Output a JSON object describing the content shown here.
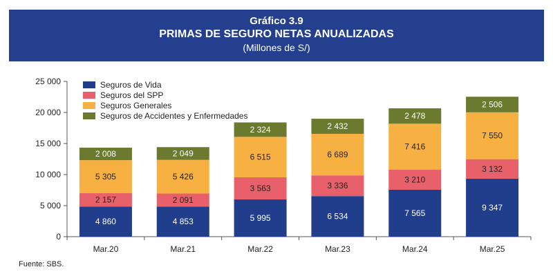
{
  "header": {
    "line1": "Gráfico 3.9",
    "line2": "PRIMAS DE SEGURO NETAS ANUALIZADAS",
    "line3": "(Millones de S/)"
  },
  "source": "Fuente: SBS.",
  "chart_data": {
    "type": "bar",
    "stacked": true,
    "categories": [
      "Mar.20",
      "Mar.21",
      "Mar.22",
      "Mar.23",
      "Mar.24",
      "Mar.25"
    ],
    "series": [
      {
        "name": "Seguros de Vida",
        "color": "#213e8c",
        "values": [
          4860,
          4853,
          5995,
          6534,
          7565,
          9347
        ],
        "labels": [
          "4 860",
          "4 853",
          "5 995",
          "6 534",
          "7 565",
          "9 347"
        ]
      },
      {
        "name": "Seguros del SPP",
        "color": "#e8606a",
        "values": [
          2157,
          2091,
          3563,
          3336,
          3210,
          3132
        ],
        "labels": [
          "2 157",
          "2 091",
          "3 563",
          "3 336",
          "3 210",
          "3 132"
        ]
      },
      {
        "name": "Seguros Generales",
        "color": "#f7b143",
        "values": [
          5305,
          5426,
          6515,
          6689,
          7416,
          7550
        ],
        "labels": [
          "5 305",
          "5 426",
          "6 515",
          "6 689",
          "7 416",
          "7 550"
        ]
      },
      {
        "name": "Seguros de Accidentes y Enfermedades",
        "color": "#6b7a2e",
        "values": [
          2008,
          2049,
          2324,
          2432,
          2478,
          2506
        ],
        "labels": [
          "2 008",
          "2 049",
          "2 324",
          "2 432",
          "2 478",
          "2 506"
        ]
      }
    ],
    "ylim": [
      0,
      25000
    ],
    "yticks": [
      0,
      5000,
      10000,
      15000,
      20000,
      25000
    ],
    "ytick_labels": [
      "0",
      "5 000",
      "10 000",
      "15 000",
      "20 000",
      "25 000"
    ],
    "grid": false,
    "legend_position": "top-left"
  }
}
